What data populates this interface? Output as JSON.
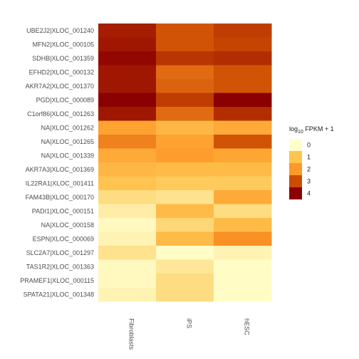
{
  "chart_data": {
    "type": "heatmap",
    "columns": [
      "Fibroblasts",
      "iPS",
      "hESC"
    ],
    "rows": [
      "UBE2J2|XLOC_001240",
      "MFN2|XLOC_000105",
      "SDHB|XLOC_001359",
      "EFHD2|XLOC_000132",
      "AKR7A2|XLOC_001370",
      "PGD|XLOC_000089",
      "C1orf86|XLOC_001263",
      "NA|XLOC_001262",
      "NA|XLOC_001265",
      "NA|XLOC_001339",
      "AKR7A3|XLOC_001369",
      "IL22RA1|XLOC_001411",
      "FAM43B|XLOC_000170",
      "PADI1|XLOC_000151",
      "NA|XLOC_000158",
      "ESPN|XLOC_000069",
      "SLC2A7|XLOC_001297",
      "TAS1R2|XLOC_001363",
      "PRAMEF1|XLOC_000115",
      "SPATA21|XLOC_001348"
    ],
    "values": [
      [
        3.6,
        2.9,
        3.2
      ],
      [
        3.7,
        2.9,
        3.1
      ],
      [
        3.9,
        3.3,
        3.4
      ],
      [
        3.7,
        2.6,
        2.9
      ],
      [
        3.7,
        2.7,
        2.9
      ],
      [
        4.1,
        3.2,
        4.0
      ],
      [
        3.7,
        2.6,
        3.4
      ],
      [
        1.8,
        1.3,
        1.6
      ],
      [
        2.3,
        1.8,
        2.9
      ],
      [
        1.6,
        1.9,
        1.7
      ],
      [
        1.3,
        1.2,
        1.2
      ],
      [
        1.0,
        0.9,
        0.9
      ],
      [
        0.6,
        0.5,
        1.6
      ],
      [
        0.3,
        1.2,
        0.6
      ],
      [
        0.1,
        0.7,
        1.2
      ],
      [
        0.2,
        1.2,
        2.1
      ],
      [
        0.5,
        0.05,
        0.2
      ],
      [
        0.1,
        0.4,
        0.05
      ],
      [
        0.1,
        0.6,
        0.05
      ],
      [
        0.2,
        0.6,
        0.05
      ]
    ],
    "legend": {
      "title_main": "log",
      "title_sub": "10",
      "title_rest": " FPKM + 1",
      "ticks": [
        0,
        1,
        2,
        3,
        4
      ],
      "colors": [
        "#FFFFCC",
        "#FEC44F",
        "#FE9929",
        "#CC4C02",
        "#8B0000"
      ]
    },
    "value_range": [
      0,
      4.1
    ],
    "grid": false,
    "legend_position": "right"
  }
}
